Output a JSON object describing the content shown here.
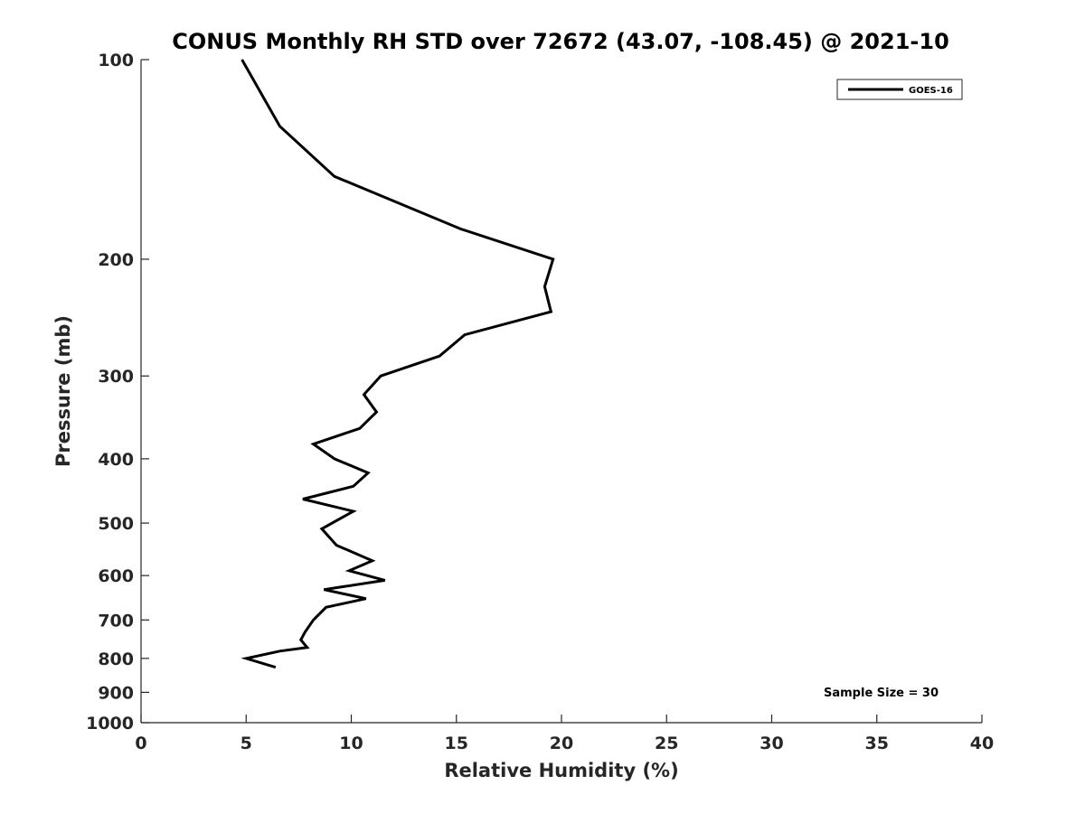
{
  "chart_data": {
    "type": "line",
    "title": "CONUS Monthly RH STD over 72672 (43.07, -108.45) @ 2021-10",
    "xlabel": "Relative Humidity (%)",
    "ylabel": "Pressure (mb)",
    "xlim": [
      0,
      40
    ],
    "ylim": [
      100,
      1000
    ],
    "y_scale": "log",
    "y_reversed": true,
    "x_ticks": [
      "0",
      "5",
      "10",
      "15",
      "20",
      "25",
      "30",
      "35",
      "40"
    ],
    "y_ticks": [
      "100",
      "200",
      "300",
      "400",
      "500",
      "600",
      "700",
      "800",
      "900",
      "1000"
    ],
    "grid": false,
    "legend_position": "top-right",
    "annotation": "Sample Size = 30",
    "series": [
      {
        "name": "GOES-16",
        "color": "#000000",
        "points": [
          {
            "x": 4.8,
            "y": 100
          },
          {
            "x": 6.6,
            "y": 126
          },
          {
            "x": 9.2,
            "y": 150
          },
          {
            "x": 15.2,
            "y": 180
          },
          {
            "x": 19.6,
            "y": 200
          },
          {
            "x": 19.2,
            "y": 220
          },
          {
            "x": 19.5,
            "y": 240
          },
          {
            "x": 15.4,
            "y": 260
          },
          {
            "x": 14.2,
            "y": 280
          },
          {
            "x": 11.4,
            "y": 300
          },
          {
            "x": 10.6,
            "y": 320
          },
          {
            "x": 11.2,
            "y": 340
          },
          {
            "x": 10.4,
            "y": 360
          },
          {
            "x": 8.2,
            "y": 380
          },
          {
            "x": 9.2,
            "y": 400
          },
          {
            "x": 10.8,
            "y": 420
          },
          {
            "x": 10.1,
            "y": 440
          },
          {
            "x": 7.7,
            "y": 460
          },
          {
            "x": 10.1,
            "y": 480
          },
          {
            "x": 8.6,
            "y": 510
          },
          {
            "x": 9.3,
            "y": 540
          },
          {
            "x": 11.0,
            "y": 570
          },
          {
            "x": 9.9,
            "y": 590
          },
          {
            "x": 11.6,
            "y": 610
          },
          {
            "x": 8.7,
            "y": 630
          },
          {
            "x": 10.7,
            "y": 650
          },
          {
            "x": 8.8,
            "y": 670
          },
          {
            "x": 8.2,
            "y": 700
          },
          {
            "x": 7.8,
            "y": 730
          },
          {
            "x": 7.6,
            "y": 750
          },
          {
            "x": 7.9,
            "y": 770
          },
          {
            "x": 6.6,
            "y": 780
          },
          {
            "x": 5.0,
            "y": 800
          },
          {
            "x": 6.4,
            "y": 825
          }
        ]
      }
    ]
  }
}
